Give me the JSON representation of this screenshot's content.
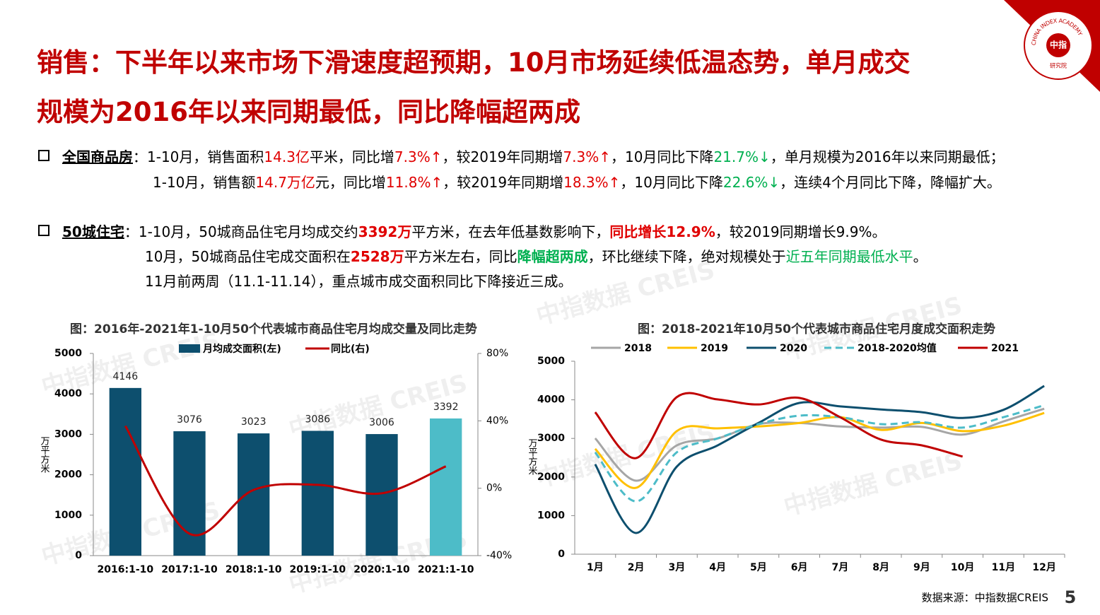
{
  "header": {
    "title_lines": [
      "销售：下半年以来市场下滑速度超预期，10月市场延续低温态势，单月成交",
      "规模为2016年以来同期最低，同比降幅超两成"
    ]
  },
  "bullets": [
    {
      "label": "全国商品房",
      "sep": "：",
      "lines": [
        [
          {
            "text": "1-10月，销售面积"
          },
          {
            "text": "14.3亿",
            "color": "#e00000"
          },
          {
            "text": "平米，同比增"
          },
          {
            "text": "7.3%↑",
            "color": "#e00000"
          },
          {
            "text": "，较2019年同期增"
          },
          {
            "text": "7.3%↑",
            "color": "#e00000"
          },
          {
            "text": "，10月同比下降"
          },
          {
            "text": "21.7%↓",
            "color": "#00b050"
          },
          {
            "text": "，单月规模为2016年以来同期最低；"
          }
        ],
        [
          {
            "text": "1-10月，销售额"
          },
          {
            "text": "14.7万亿",
            "color": "#e00000"
          },
          {
            "text": "元，同比增"
          },
          {
            "text": "11.8%↑",
            "color": "#e00000"
          },
          {
            "text": "，较2019年同期增"
          },
          {
            "text": "18.3%↑",
            "color": "#e00000"
          },
          {
            "text": "，10月同比下降"
          },
          {
            "text": "22.6%↓",
            "color": "#00b050"
          },
          {
            "text": "，连续4个月同比下降，降幅扩大。"
          }
        ]
      ]
    },
    {
      "label": "50城住宅",
      "sep": "：",
      "lines": [
        [
          {
            "text": "1-10月，50城商品住宅月均成交约"
          },
          {
            "text": "3392万",
            "color": "#e00000",
            "bold": true
          },
          {
            "text": "平方米，在去年低基数影响下，"
          },
          {
            "text": "同比增长12.9%",
            "color": "#e00000",
            "bold": true
          },
          {
            "text": "，较2019同期增长9.9%。"
          }
        ],
        [
          {
            "text": "10月，50城商品住宅成交面积在"
          },
          {
            "text": "2528万",
            "color": "#e00000",
            "bold": true
          },
          {
            "text": "平方米左右，同比"
          },
          {
            "text": "降幅超两成",
            "color": "#00b050",
            "bold": true
          },
          {
            "text": "，环比继续下降，绝对规模处于"
          },
          {
            "text": "近五年同期最低水平",
            "color": "#00b050"
          },
          {
            "text": "。"
          }
        ],
        [
          {
            "text": "11月前两周（11.1-11.14），重点城市成交面积同比下降接近三成。"
          }
        ]
      ]
    }
  ],
  "chart_data": [
    {
      "type": "bar_line",
      "title": "图：2016年-2021年1-10月50个代表城市商品住宅月均成交量及同比走势",
      "ylabel": "万平方米",
      "categories": [
        "2016:1-10",
        "2017:1-10",
        "2018:1-10",
        "2019:1-10",
        "2020:1-10",
        "2021:1-10"
      ],
      "series": [
        {
          "name": "月均成交面积(左)",
          "color": "#0d4f6e",
          "colors": [
            "#0d4f6e",
            "#0d4f6e",
            "#0d4f6e",
            "#0d4f6e",
            "#0d4f6e",
            "#4dbcc8"
          ],
          "values": [
            4146,
            3076,
            3023,
            3086,
            3006,
            3392
          ]
        },
        {
          "name": "同比(右)",
          "color": "#c00000",
          "axis": "y2",
          "values": [
            37,
            -27,
            -1,
            2,
            -3,
            13
          ]
        }
      ],
      "ylim": [
        0,
        5000
      ],
      "yticks": [
        0,
        1000,
        2000,
        3000,
        4000,
        5000
      ],
      "y2lim": [
        -40,
        80
      ],
      "y2ticks": [
        {
          "value": -40,
          "label": "-40%"
        },
        {
          "value": 0,
          "label": "0%"
        },
        {
          "value": 40,
          "label": "40%"
        },
        {
          "value": 80,
          "label": "80%"
        }
      ]
    },
    {
      "type": "line",
      "title": "图：2018-2021年10月50个代表城市商品住宅月度成交面积走势",
      "ylabel": "万平方米",
      "categories": [
        "1月",
        "2月",
        "3月",
        "4月",
        "5月",
        "6月",
        "7月",
        "8月",
        "9月",
        "10月",
        "11月",
        "12月"
      ],
      "series": [
        {
          "name": "2018",
          "color": "#a6a6a6",
          "values": [
            3004,
            1905,
            2820,
            3000,
            3370,
            3400,
            3310,
            3280,
            3300,
            3100,
            3440,
            3770
          ]
        },
        {
          "name": "2019",
          "color": "#ffc000",
          "values": [
            2730,
            1720,
            3190,
            3260,
            3310,
            3400,
            3550,
            3220,
            3400,
            3190,
            3330,
            3660
          ]
        },
        {
          "name": "2020",
          "color": "#0d4f6e",
          "values": [
            2330,
            550,
            2270,
            2820,
            3400,
            3920,
            3830,
            3750,
            3680,
            3530,
            3740,
            4360
          ]
        },
        {
          "name": "2018-2020均值",
          "color": "#4dbcc8",
          "dash": true,
          "values": [
            2640,
            1370,
            2640,
            3000,
            3370,
            3590,
            3550,
            3370,
            3420,
            3280,
            3550,
            3860
          ]
        },
        {
          "name": "2021",
          "color": "#c00000",
          "values": [
            3680,
            2490,
            4070,
            4010,
            3880,
            4050,
            3550,
            2970,
            2820,
            2528,
            null,
            null
          ]
        }
      ],
      "ylim": [
        0,
        5000
      ],
      "yticks": [
        0,
        1000,
        2000,
        3000,
        4000,
        5000
      ]
    }
  ],
  "footer": {
    "source": "数据来源：中指数据CREIS",
    "page": "5"
  },
  "watermark": "中指数据 CREIS",
  "logo": {
    "name": "中指",
    "ring": "CHINA INDEX ACADEMY",
    "sub": "研究院"
  }
}
